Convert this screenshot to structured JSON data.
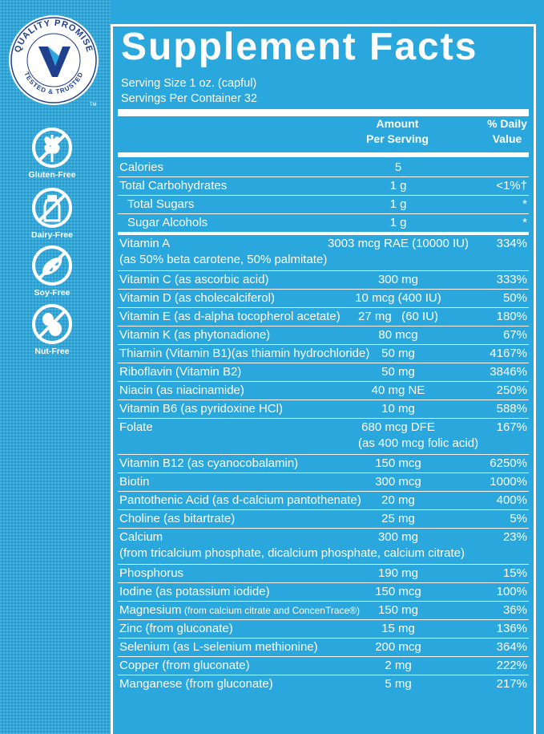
{
  "seal": {
    "top_text": "QUALITY PROMISE",
    "bottom_text": "TESTED & TRUSTED",
    "tm": "TM"
  },
  "badges": [
    "Gluten-Free",
    "Dairy-Free",
    "Soy-Free",
    "Nut-Free"
  ],
  "title": "Supplement Facts",
  "serving_size": "Serving Size 1 oz. (capful)",
  "servings_per_container": "Servings Per Container 32",
  "header": {
    "amount": "Amount",
    "per_serving": "Per Serving",
    "pct": "% Daily",
    "value": "Value"
  },
  "rows": [
    {
      "name": "Calories",
      "amount": "5",
      "dv": ""
    },
    {
      "name": "Total Carbohydrates",
      "amount": "1 g",
      "dv": "<1%†"
    },
    {
      "name": "Total Sugars",
      "amount": "1 g",
      "dv": "*"
    },
    {
      "name": "Sugar Alcohols",
      "amount": "1 g",
      "dv": "*"
    },
    {
      "name": "Vitamin A",
      "amount": "3003 mcg RAE (10000 IU)",
      "dv": "334%",
      "sub": "(as 50% beta carotene, 50% palmitate)"
    },
    {
      "name": "Vitamin C (as ascorbic acid)",
      "amount": "300 mg",
      "dv": "333%"
    },
    {
      "name": "Vitamin D (as cholecalciferol)",
      "amount": "10 mcg (400 IU)",
      "dv": "50%"
    },
    {
      "name": "Vitamin E (as d-alpha tocopherol acetate)",
      "amount": "27 mg   (60 IU)",
      "dv": "180%"
    },
    {
      "name": "Vitamin K (as phytonadione)",
      "amount": "80 mcg",
      "dv": "67%"
    },
    {
      "name": "Thiamin (Vitamin B1)(as thiamin hydrochloride)",
      "amount": "50 mg",
      "dv": "4167%"
    },
    {
      "name": "Riboflavin (Vitamin B2)",
      "amount": "50 mg",
      "dv": "3846%"
    },
    {
      "name": "Niacin (as niacinamide)",
      "amount": "40 mg NE",
      "dv": "250%"
    },
    {
      "name": "Vitamin B6 (as pyridoxine HCl)",
      "amount": "10 mg",
      "dv": "588%"
    },
    {
      "name": "Folate",
      "amount": "680 mcg DFE",
      "dv": "167%",
      "sub_amount": "(as 400 mcg folic acid)"
    },
    {
      "name": "Vitamin B12 (as cyanocobalamin)",
      "amount": "150 mcg",
      "dv": "6250%"
    },
    {
      "name": "Biotin",
      "amount": "300 mcg",
      "dv": "1000%"
    },
    {
      "name": "Pantothenic Acid (as d-calcium pantothenate)",
      "amount": "20 mg",
      "dv": "400%"
    },
    {
      "name": "Choline (as bitartrate)",
      "amount": "25 mg",
      "dv": "5%"
    },
    {
      "name": "Calcium",
      "amount": "300 mg",
      "dv": "23%",
      "sub": "(from tricalcium phosphate, dicalcium phosphate, calcium citrate)"
    },
    {
      "name": "Phosphorus",
      "amount": "190 mg",
      "dv": "15%"
    },
    {
      "name": "Iodine (as potassium iodide)",
      "amount": "150 mcg",
      "dv": "100%"
    },
    {
      "name": "Magnesium",
      "name_small": "(from calcium citrate and ConcenTrace®)",
      "amount": "150 mg",
      "dv": "36%"
    },
    {
      "name": "Zinc (from gluconate)",
      "amount": "15 mg",
      "dv": "136%"
    },
    {
      "name": "Selenium (as L-selenium methionine)",
      "amount": "200 mcg",
      "dv": "364%"
    },
    {
      "name": "Copper (from gluconate)",
      "amount": "2 mg",
      "dv": "222%"
    },
    {
      "name": "Manganese (from gluconate)",
      "amount": "5 mg",
      "dv": "217%"
    }
  ]
}
